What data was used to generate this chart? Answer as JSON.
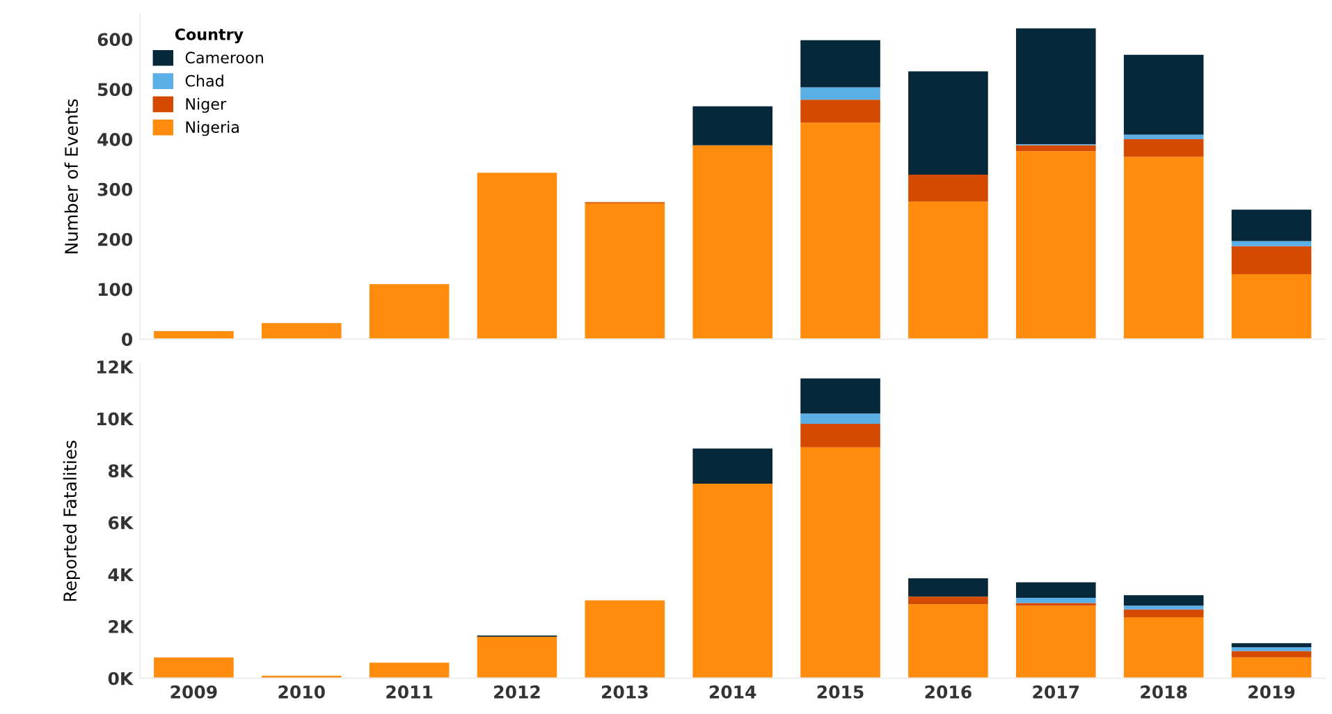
{
  "chart_data": [
    {
      "type": "bar",
      "ylabel": "Number of Events",
      "legend_title": "Country",
      "legend": "top left",
      "stacked": true,
      "tick_labels": "y",
      "grid": false,
      "categories": [
        "2009",
        "2010",
        "2011",
        "2012",
        "2013",
        "2014",
        "2015",
        "2016",
        "2017",
        "2018",
        "2019"
      ],
      "ylim": [
        0,
        650
      ],
      "yticks": [
        0,
        100,
        200,
        300,
        400,
        500,
        600
      ],
      "series": [
        {
          "name": "Nigeria",
          "color": "#ff8c0c",
          "values": [
            16,
            32,
            110,
            333,
            272,
            388,
            433,
            275,
            376,
            365,
            130
          ]
        },
        {
          "name": "Niger",
          "color": "#d44a00",
          "values": [
            0,
            0,
            0,
            0,
            2,
            0,
            46,
            54,
            12,
            35,
            56
          ]
        },
        {
          "name": "Chad",
          "color": "#5aafe6",
          "values": [
            0,
            0,
            0,
            0,
            0,
            0,
            25,
            0,
            2,
            9,
            10
          ]
        },
        {
          "name": "Cameroon",
          "color": "#06283a",
          "values": [
            0,
            0,
            0,
            0,
            0,
            78,
            94,
            207,
            232,
            160,
            63
          ]
        }
      ]
    },
    {
      "type": "bar",
      "ylabel": "Reported Fatalities",
      "legend": false,
      "stacked": true,
      "grid": false,
      "categories": [
        "2009",
        "2010",
        "2011",
        "2012",
        "2013",
        "2014",
        "2015",
        "2016",
        "2017",
        "2018",
        "2019"
      ],
      "ylim": [
        0,
        12100
      ],
      "yticks": [
        {
          "value": 0,
          "label": "0K"
        },
        {
          "value": 2000,
          "label": "2K"
        },
        {
          "value": 4000,
          "label": "4K"
        },
        {
          "value": 6000,
          "label": "6K"
        },
        {
          "value": 8000,
          "label": "8K"
        },
        {
          "value": 10000,
          "label": "10K"
        },
        {
          "value": 12000,
          "label": "12K"
        }
      ],
      "series": [
        {
          "color": "#ff8c0c",
          "values": [
            800,
            100,
            600,
            1600,
            3000,
            7500,
            8900,
            2850,
            2800,
            2350,
            800
          ]
        },
        {
          "color": "#d44a00",
          "values": [
            0,
            0,
            0,
            0,
            0,
            0,
            900,
            300,
            100,
            300,
            250
          ]
        },
        {
          "color": "#5aafe6",
          "values": [
            0,
            0,
            0,
            0,
            0,
            0,
            400,
            0,
            200,
            150,
            150
          ]
        },
        {
          "color": "#06283a",
          "values": [
            0,
            0,
            0,
            50,
            0,
            1350,
            1350,
            700,
            600,
            400,
            150
          ]
        }
      ]
    }
  ]
}
